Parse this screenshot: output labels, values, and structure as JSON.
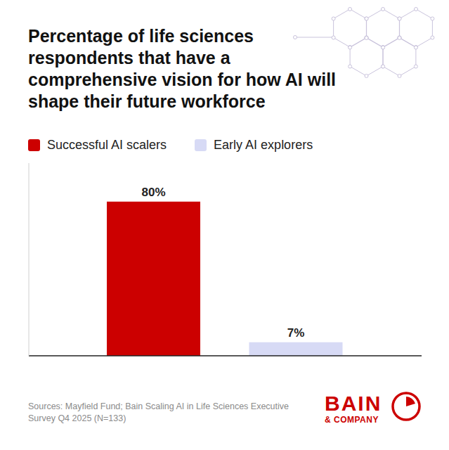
{
  "chart_data": {
    "type": "bar",
    "title": "Percentage of life sciences respondents that have a comprehensive vision for how AI will shape their future workforce",
    "categories": [
      "Successful AI scalers",
      "Early AI explorers"
    ],
    "values": [
      80,
      7
    ],
    "value_labels": [
      "80%",
      "7%"
    ],
    "colors": [
      "#cc0000",
      "#d7daf5"
    ],
    "ylim": [
      0,
      100
    ],
    "data_labels": true,
    "tick_labels": false,
    "legend": "top-left",
    "grid": false,
    "source": "Sources: Mayfield Fund; Bain Scaling AI in Life Sciences Executive Survey Q4 2025 (N=133)",
    "logo": {
      "name": "BAIN",
      "sub": "& COMPANY"
    }
  }
}
